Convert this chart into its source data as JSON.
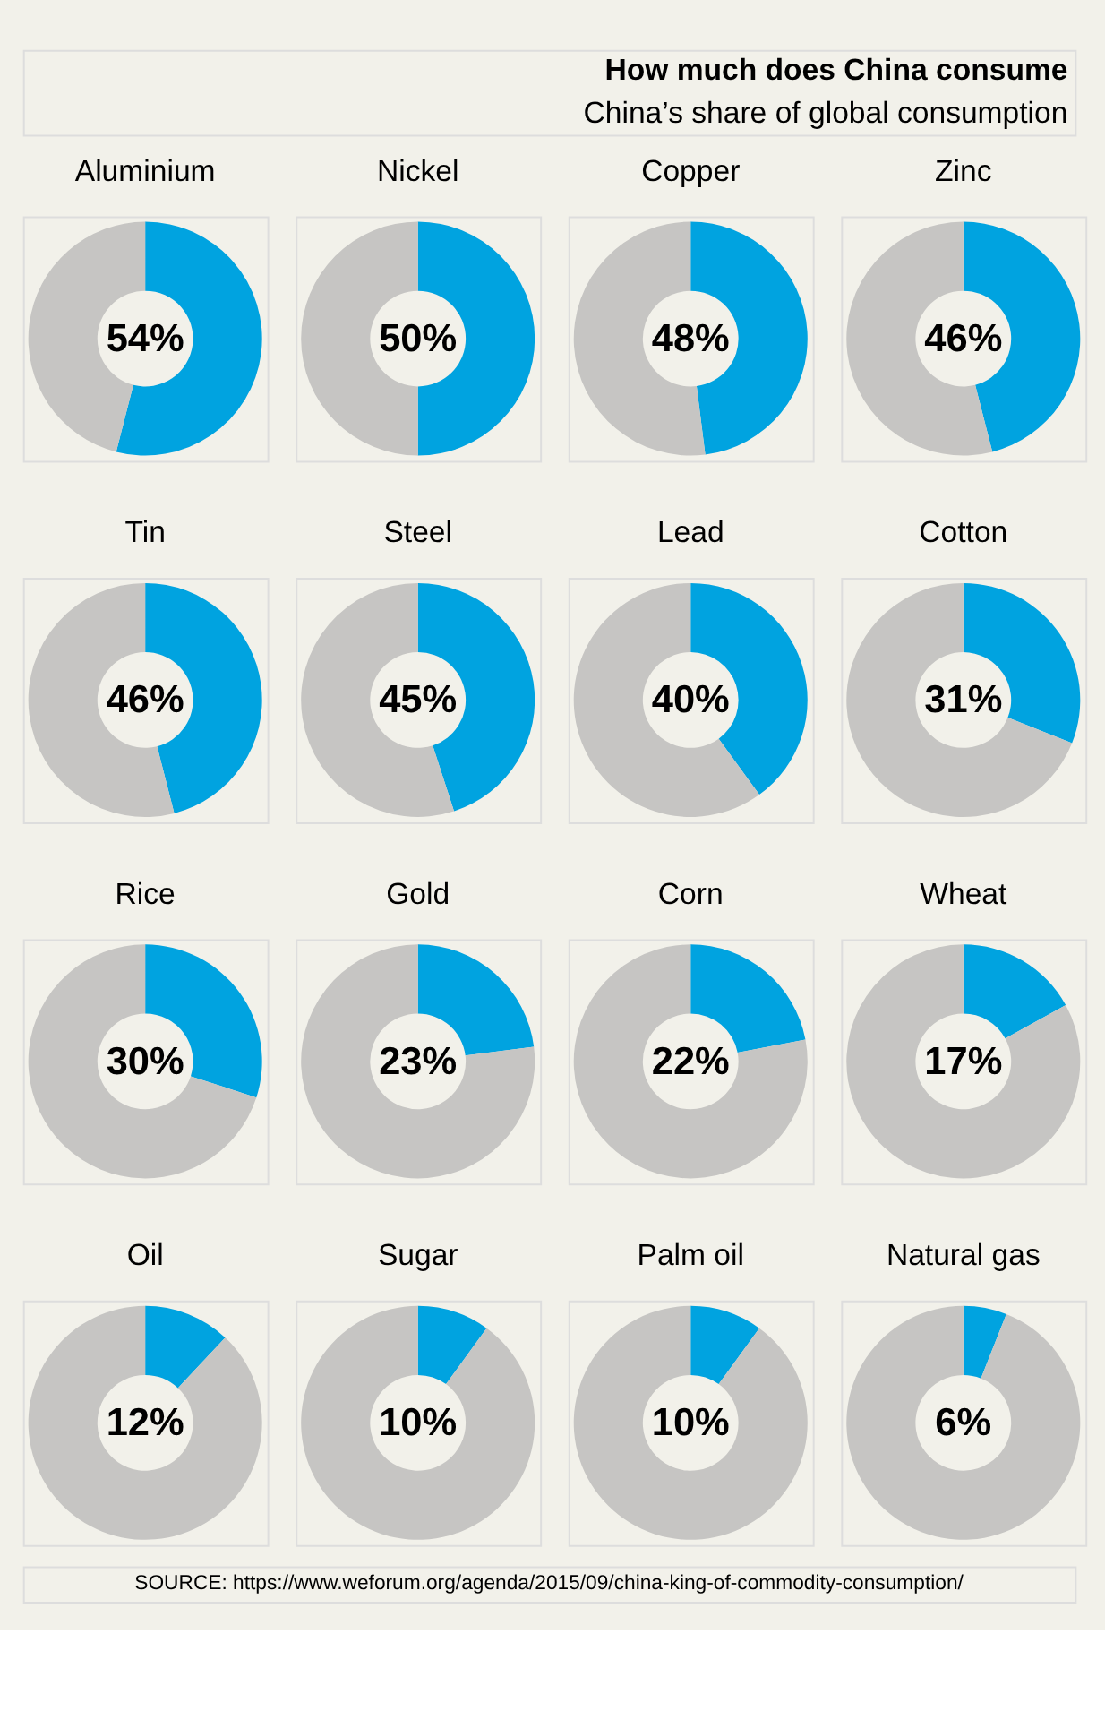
{
  "chart_data": [
    {
      "type": "other",
      "title": "How much does China consume",
      "subtitle": "China’s share of global consumption",
      "annotations": [
        "SOURCE: https://www.weforum.org/agenda/2015/09/china-king-of-commodity-consumption/"
      ]
    },
    {
      "type": "donut",
      "title": "Aluminium",
      "categories": [
        null,
        null
      ],
      "values": [
        54,
        46
      ],
      "colors": [
        "#00a3e0",
        "#c6c5c3"
      ],
      "value_labels": [
        "54%",
        null
      ]
    },
    {
      "type": "donut",
      "title": "Nickel",
      "categories": [
        null,
        null
      ],
      "values": [
        50,
        50
      ],
      "colors": [
        "#00a3e0",
        "#c6c5c3"
      ],
      "value_labels": [
        "50%",
        null
      ]
    },
    {
      "type": "donut",
      "title": "Copper",
      "categories": [
        null,
        null
      ],
      "values": [
        48,
        52
      ],
      "colors": [
        "#00a3e0",
        "#c6c5c3"
      ],
      "value_labels": [
        "48%",
        null
      ]
    },
    {
      "type": "donut",
      "title": "Zinc",
      "categories": [
        null,
        null
      ],
      "values": [
        46,
        54
      ],
      "colors": [
        "#00a3e0",
        "#c6c5c3"
      ],
      "value_labels": [
        "46%",
        null
      ]
    },
    {
      "type": "donut",
      "title": "Tin",
      "categories": [
        null,
        null
      ],
      "values": [
        46,
        54
      ],
      "colors": [
        "#00a3e0",
        "#c6c5c3"
      ],
      "value_labels": [
        "46%",
        null
      ]
    },
    {
      "type": "donut",
      "title": "Steel",
      "categories": [
        null,
        null
      ],
      "values": [
        45,
        55
      ],
      "colors": [
        "#00a3e0",
        "#c6c5c3"
      ],
      "value_labels": [
        "45%",
        null
      ]
    },
    {
      "type": "donut",
      "title": "Lead",
      "categories": [
        null,
        null
      ],
      "values": [
        40,
        60
      ],
      "colors": [
        "#00a3e0",
        "#c6c5c3"
      ],
      "value_labels": [
        "40%",
        null
      ]
    },
    {
      "type": "donut",
      "title": "Cotton",
      "categories": [
        null,
        null
      ],
      "values": [
        31,
        69
      ],
      "colors": [
        "#00a3e0",
        "#c6c5c3"
      ],
      "value_labels": [
        "31%",
        null
      ]
    },
    {
      "type": "donut",
      "title": "Rice",
      "categories": [
        null,
        null
      ],
      "values": [
        30,
        70
      ],
      "colors": [
        "#00a3e0",
        "#c6c5c3"
      ],
      "value_labels": [
        "30%",
        null
      ]
    },
    {
      "type": "donut",
      "title": "Gold",
      "categories": [
        null,
        null
      ],
      "values": [
        23,
        77
      ],
      "colors": [
        "#00a3e0",
        "#c6c5c3"
      ],
      "value_labels": [
        "23%",
        null
      ]
    },
    {
      "type": "donut",
      "title": "Corn",
      "categories": [
        null,
        null
      ],
      "values": [
        22,
        78
      ],
      "colors": [
        "#00a3e0",
        "#c6c5c3"
      ],
      "value_labels": [
        "22%",
        null
      ]
    },
    {
      "type": "donut",
      "title": "Wheat",
      "categories": [
        null,
        null
      ],
      "values": [
        17,
        83
      ],
      "colors": [
        "#00a3e0",
        "#c6c5c3"
      ],
      "value_labels": [
        "17%",
        null
      ]
    },
    {
      "type": "donut",
      "title": "Oil",
      "categories": [
        null,
        null
      ],
      "values": [
        12,
        88
      ],
      "colors": [
        "#00a3e0",
        "#c6c5c3"
      ],
      "value_labels": [
        "12%",
        null
      ]
    },
    {
      "type": "donut",
      "title": "Sugar",
      "categories": [
        null,
        null
      ],
      "values": [
        10,
        90
      ],
      "colors": [
        "#00a3e0",
        "#c6c5c3"
      ],
      "value_labels": [
        "10%",
        null
      ]
    },
    {
      "type": "donut",
      "title": "Palm oil",
      "categories": [
        null,
        null
      ],
      "values": [
        10,
        90
      ],
      "colors": [
        "#00a3e0",
        "#c6c5c3"
      ],
      "value_labels": [
        "10%",
        null
      ]
    },
    {
      "type": "donut",
      "title": "Natural gas",
      "categories": [
        null,
        null
      ],
      "values": [
        6,
        94
      ],
      "colors": [
        "#00a3e0",
        "#c6c5c3"
      ],
      "value_labels": [
        "6%",
        null
      ]
    }
  ]
}
